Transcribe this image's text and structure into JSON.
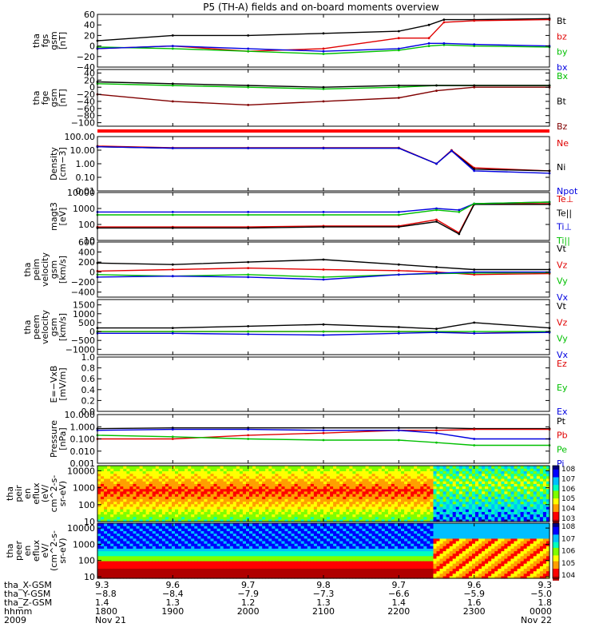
{
  "title": "P5 (TH-A) fields and on-board moments overview",
  "chart_data": [
    {
      "type": "line",
      "panel": "fgs_gsm",
      "ylabel": [
        "tha",
        "fgs",
        "gsm",
        "[nT]"
      ],
      "yticks": [
        "60",
        "40",
        "20",
        "0",
        "−20",
        "−40"
      ],
      "ylim": [
        -40,
        60
      ],
      "series": [
        {
          "name": "Bt",
          "color": "#000000",
          "x": [
            18.0,
            19.0,
            20.0,
            21.0,
            22.0,
            22.4,
            22.6,
            23.0,
            24.0
          ],
          "y": [
            10,
            20,
            20,
            24,
            28,
            40,
            50,
            50,
            52
          ]
        },
        {
          "name": "bz",
          "color": "#e00000",
          "x": [
            18.0,
            19.0,
            20.0,
            21.0,
            22.0,
            22.4,
            22.6,
            23.0,
            24.0
          ],
          "y": [
            -5,
            0,
            -10,
            -5,
            15,
            15,
            45,
            48,
            50
          ]
        },
        {
          "name": "by",
          "color": "#00c000",
          "x": [
            18.0,
            19.0,
            20.0,
            21.0,
            22.0,
            22.4,
            22.6,
            23.0,
            24.0
          ],
          "y": [
            -2,
            -5,
            -10,
            -15,
            -8,
            0,
            2,
            0,
            -2
          ]
        },
        {
          "name": "bx",
          "color": "#0000e0",
          "x": [
            18.0,
            19.0,
            20.0,
            21.0,
            22.0,
            22.4,
            22.6,
            23.0,
            24.0
          ],
          "y": [
            -5,
            0,
            -5,
            -10,
            -5,
            5,
            5,
            3,
            0
          ]
        }
      ]
    },
    {
      "type": "line",
      "panel": "fge_gsm",
      "ylabel": [
        "tha",
        "fge",
        "gsm",
        "[nT]"
      ],
      "yticks": [
        "40",
        "20",
        "0",
        "−20",
        "−40",
        "−60",
        "−80",
        "−100"
      ],
      "ylim": [
        -110,
        50
      ],
      "series": [
        {
          "name": "Bx",
          "color": "#00c000",
          "x": [
            18.0,
            19.0,
            20.0,
            21.0,
            22.0,
            22.5,
            23.0,
            24.0
          ],
          "y": [
            10,
            5,
            0,
            -5,
            0,
            5,
            5,
            5
          ]
        },
        {
          "name": "Bt",
          "color": "#000000",
          "x": [
            18.0,
            19.0,
            20.0,
            21.0,
            22.0,
            22.5,
            23.0,
            24.0
          ],
          "y": [
            15,
            10,
            5,
            0,
            5,
            5,
            5,
            5
          ]
        },
        {
          "name": "Bz",
          "color": "#800000",
          "x": [
            18.0,
            19.0,
            20.0,
            21.0,
            22.0,
            22.5,
            23.0,
            24.0
          ],
          "y": [
            -20,
            -40,
            -50,
            -40,
            -30,
            -10,
            0,
            0
          ]
        }
      ]
    },
    {
      "type": "line",
      "panel": "density",
      "ylabel": [
        "Density",
        "[cm−3]"
      ],
      "yticks": [
        "100.00",
        "10.00",
        "1.00",
        "0.10",
        "0.01"
      ],
      "ylim": [
        0.01,
        100
      ],
      "yscale": "log",
      "series": [
        {
          "name": "Ne",
          "color": "#e00000",
          "x": [
            18.0,
            19.0,
            20.0,
            21.0,
            22.0,
            22.5,
            22.7,
            23.0,
            24.0
          ],
          "y": [
            20,
            15,
            15,
            15,
            15,
            1,
            10,
            0.5,
            0.3
          ]
        },
        {
          "name": "Ni",
          "color": "#000000",
          "x": [
            18.0,
            19.0,
            20.0,
            21.0,
            22.0,
            22.5,
            22.7,
            23.0,
            24.0
          ],
          "y": [
            18,
            14,
            14,
            14,
            14,
            1,
            9,
            0.4,
            0.3
          ]
        },
        {
          "name": "Npot",
          "color": "#0000e0",
          "x": [
            18.0,
            19.0,
            20.0,
            21.0,
            22.0,
            22.5,
            22.7,
            23.0,
            24.0
          ],
          "y": [
            18,
            14,
            14,
            14,
            14,
            1,
            9,
            0.3,
            0.2
          ]
        }
      ]
    },
    {
      "type": "line",
      "panel": "temperature",
      "ylabel": [
        "magt3",
        "[eV]"
      ],
      "yticks": [
        "10000",
        "1000",
        "100",
        "10"
      ],
      "ylim": [
        10,
        10000
      ],
      "yscale": "log",
      "series": [
        {
          "name": "Te⊥",
          "color": "#e00000",
          "x": [
            18.0,
            19.0,
            20.0,
            21.0,
            22.0,
            22.5,
            22.8,
            23.0,
            24.0
          ],
          "y": [
            70,
            70,
            70,
            80,
            80,
            200,
            30,
            2000,
            2000
          ]
        },
        {
          "name": "Te||",
          "color": "#000000",
          "x": [
            18.0,
            19.0,
            20.0,
            21.0,
            22.0,
            22.5,
            22.8,
            23.0,
            24.0
          ],
          "y": [
            60,
            60,
            60,
            70,
            70,
            150,
            25,
            1800,
            1800
          ]
        },
        {
          "name": "Ti⊥",
          "color": "#0000e0",
          "x": [
            18.0,
            19.0,
            20.0,
            21.0,
            22.0,
            22.5,
            22.8,
            23.0,
            24.0
          ],
          "y": [
            600,
            600,
            600,
            600,
            600,
            1000,
            800,
            2000,
            2500
          ]
        },
        {
          "name": "Ti||",
          "color": "#00c000",
          "x": [
            18.0,
            19.0,
            20.0,
            21.0,
            22.0,
            22.5,
            22.8,
            23.0,
            24.0
          ],
          "y": [
            400,
            400,
            400,
            400,
            400,
            800,
            600,
            2000,
            2500
          ]
        }
      ]
    },
    {
      "type": "line",
      "panel": "peim_velocity",
      "ylabel": [
        "tha",
        "peim",
        "velocity",
        "gsm",
        "[km/s]"
      ],
      "yticks": [
        "600",
        "400",
        "200",
        "0",
        "−200",
        "−400"
      ],
      "ylim": [
        -500,
        600
      ],
      "series": [
        {
          "name": "Vt",
          "color": "#000000",
          "x": [
            18.0,
            19.0,
            20.0,
            21.0,
            22.0,
            22.5,
            23.0,
            24.0
          ],
          "y": [
            180,
            150,
            200,
            250,
            150,
            100,
            50,
            50
          ]
        },
        {
          "name": "Vz",
          "color": "#e00000",
          "x": [
            18.0,
            19.0,
            20.0,
            21.0,
            22.0,
            22.5,
            23.0,
            24.0
          ],
          "y": [
            20,
            50,
            80,
            50,
            30,
            0,
            -50,
            -30
          ]
        },
        {
          "name": "Vy",
          "color": "#00c000",
          "x": [
            18.0,
            19.0,
            20.0,
            21.0,
            22.0,
            22.5,
            23.0,
            24.0
          ],
          "y": [
            -50,
            -80,
            -50,
            -100,
            -50,
            -30,
            -20,
            -10
          ]
        },
        {
          "name": "Vx",
          "color": "#0000e0",
          "x": [
            18.0,
            19.0,
            20.0,
            21.0,
            22.0,
            22.5,
            23.0,
            24.0
          ],
          "y": [
            -100,
            -80,
            -100,
            -150,
            -50,
            -20,
            0,
            0
          ]
        }
      ]
    },
    {
      "type": "line",
      "panel": "peem_velocity",
      "ylabel": [
        "tha",
        "peem",
        "velocity",
        "gsm",
        "[km/s]"
      ],
      "yticks": [
        "1500",
        "1000",
        "500",
        "0",
        "−500",
        "−1000"
      ],
      "ylim": [
        -1300,
        1800
      ],
      "series": [
        {
          "name": "Vt",
          "color": "#000000",
          "x": [
            18.0,
            19.0,
            20.0,
            21.0,
            22.0,
            22.5,
            23.0,
            24.0
          ],
          "y": [
            200,
            200,
            300,
            400,
            250,
            150,
            500,
            200
          ]
        },
        {
          "name": "Vz",
          "color": "#e00000",
          "x": [
            18.0,
            19.0,
            20.0,
            21.0,
            22.0,
            22.5,
            23.0,
            24.0
          ],
          "y": [
            0,
            0,
            0,
            0,
            0,
            0,
            -100,
            0
          ]
        },
        {
          "name": "Vy",
          "color": "#00c000",
          "x": [
            18.0,
            19.0,
            20.0,
            21.0,
            22.0,
            22.5,
            23.0,
            24.0
          ],
          "y": [
            0,
            0,
            0,
            0,
            0,
            0,
            0,
            0
          ]
        },
        {
          "name": "Vx",
          "color": "#0000e0",
          "x": [
            18.0,
            19.0,
            20.0,
            21.0,
            22.0,
            22.5,
            23.0,
            24.0
          ],
          "y": [
            -100,
            -100,
            -150,
            -200,
            -100,
            -50,
            -100,
            -50
          ]
        }
      ]
    },
    {
      "type": "line",
      "panel": "efield",
      "ylabel": [
        "E=−VxB",
        "[mV/m]"
      ],
      "yticks": [
        "1.0",
        "0.8",
        "0.6",
        "0.4",
        "0.2",
        "0.0"
      ],
      "ylim": [
        0,
        1
      ],
      "series": [
        {
          "name": "Ez",
          "color": "#e00000",
          "x": [],
          "y": []
        },
        {
          "name": "Ey",
          "color": "#00c000",
          "x": [],
          "y": []
        },
        {
          "name": "Ex",
          "color": "#0000e0",
          "x": [],
          "y": []
        }
      ]
    },
    {
      "type": "line",
      "panel": "pressure",
      "ylabel": [
        "Pressure",
        "[nPa]"
      ],
      "yticks": [
        "10.000",
        "1.000",
        "0.100",
        "0.010",
        "0.001"
      ],
      "ylim": [
        0.001,
        10
      ],
      "yscale": "log",
      "series": [
        {
          "name": "Pt",
          "color": "#000000",
          "x": [
            18.0,
            19.0,
            20.0,
            21.0,
            22.0,
            22.5,
            23.0,
            24.0
          ],
          "y": [
            0.7,
            0.8,
            0.8,
            0.8,
            0.8,
            0.8,
            0.7,
            0.7
          ]
        },
        {
          "name": "Pb",
          "color": "#e00000",
          "x": [
            18.0,
            19.0,
            20.0,
            21.0,
            22.0,
            22.5,
            23.0,
            24.0
          ],
          "y": [
            0.1,
            0.1,
            0.2,
            0.3,
            0.5,
            0.5,
            0.6,
            0.6
          ]
        },
        {
          "name": "Pe",
          "color": "#00c000",
          "x": [
            18.0,
            19.0,
            20.0,
            21.0,
            22.0,
            22.5,
            23.0,
            24.0
          ],
          "y": [
            0.2,
            0.15,
            0.1,
            0.08,
            0.08,
            0.05,
            0.03,
            0.03
          ]
        },
        {
          "name": "Pi",
          "color": "#0000e0",
          "x": [
            18.0,
            19.0,
            20.0,
            21.0,
            22.0,
            22.5,
            23.0,
            24.0
          ],
          "y": [
            0.5,
            0.6,
            0.6,
            0.5,
            0.5,
            0.3,
            0.1,
            0.1
          ]
        }
      ]
    },
    {
      "type": "heatmap",
      "panel": "peir_en_eflux",
      "ylabel": [
        "tha",
        "peir",
        "en",
        "eflux",
        "(eV/",
        "cm^2-s-",
        "sr-eV)"
      ],
      "yticks": [
        "10000",
        "1000",
        "100",
        "10"
      ],
      "ylim": [
        10,
        20000
      ],
      "yscale": "log",
      "colorbar_ticks": [
        "10^8",
        "10^7",
        "10^6",
        "10^5",
        "10^4",
        "10^3"
      ]
    },
    {
      "type": "heatmap",
      "panel": "peer_en_eflux",
      "ylabel": [
        "tha",
        "peer",
        "en",
        "eflux",
        "eV/",
        "(cm^2-s-",
        "sr-eV)"
      ],
      "yticks": [
        "10000",
        "1000",
        "100",
        "10"
      ],
      "ylim": [
        8,
        20000
      ],
      "yscale": "log",
      "colorbar_ticks": [
        "10^8",
        "10^7",
        "10^6",
        "10^5",
        "10^4"
      ]
    }
  ],
  "footer": {
    "row_labels": [
      "tha_X-GSM",
      "tha_Y-GSM",
      "tha_Z-GSM",
      "hhmm",
      "2009"
    ],
    "columns": [
      {
        "x": "9.3",
        "y": "−8.8",
        "z": "1.4",
        "hhmm": "1800",
        "date": "Nov 21"
      },
      {
        "x": "9.6",
        "y": "−8.4",
        "z": "1.3",
        "hhmm": "1900",
        "date": ""
      },
      {
        "x": "9.7",
        "y": "−7.9",
        "z": "1.2",
        "hhmm": "2000",
        "date": ""
      },
      {
        "x": "9.8",
        "y": "−7.3",
        "z": "1.3",
        "hhmm": "2100",
        "date": ""
      },
      {
        "x": "9.7",
        "y": "−6.6",
        "z": "1.4",
        "hhmm": "2200",
        "date": ""
      },
      {
        "x": "9.6",
        "y": "−5.9",
        "z": "1.6",
        "hhmm": "2300",
        "date": ""
      },
      {
        "x": "9.3",
        "y": "−5.0",
        "z": "1.8",
        "hhmm": "0000",
        "date": "Nov 22"
      }
    ]
  }
}
